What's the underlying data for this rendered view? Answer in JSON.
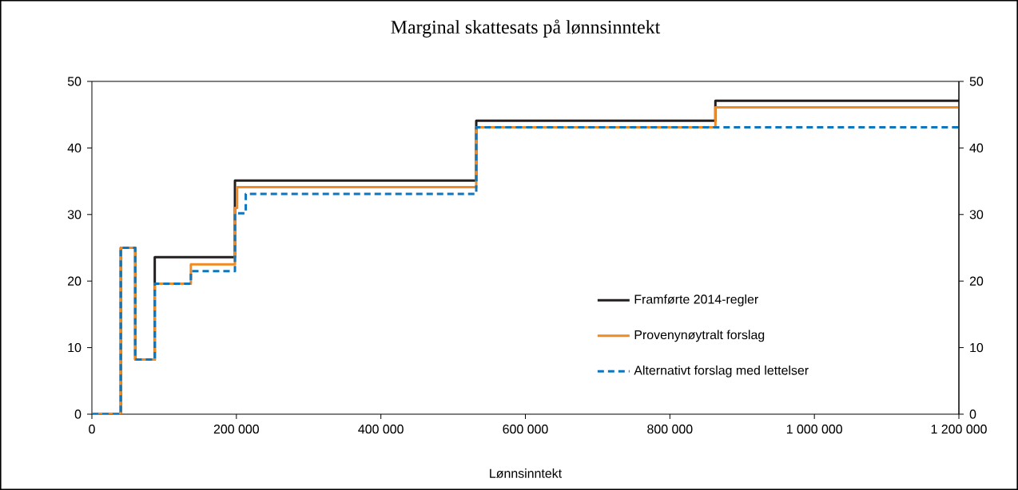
{
  "chart_data": {
    "type": "step",
    "title": "Marginal skattesats på lønnsinntekt",
    "xlabel": "Lønnsinntekt",
    "xlim": [
      0,
      1200000
    ],
    "xticks": [
      0,
      {
        "value": 200000,
        "label": "200 000"
      },
      {
        "value": 400000,
        "label": "400 000"
      },
      {
        "value": 600000,
        "label": "600 000"
      },
      {
        "value": 800000,
        "label": "800 000"
      },
      {
        "value": 1000000,
        "label": "1 000 000"
      },
      {
        "value": 1200000,
        "label": "1 200 000"
      }
    ],
    "ylim": [
      0,
      50
    ],
    "yticks": [
      0,
      10,
      20,
      30,
      40,
      50
    ],
    "y2lim": [
      0,
      50
    ],
    "y2ticks": [
      0,
      10,
      20,
      30,
      40,
      50
    ],
    "legend": "bottom right",
    "series": [
      {
        "name": "Framførte 2014-regler",
        "color": "#231f20",
        "line_style": "solid",
        "x": [
          0,
          40000,
          60000,
          87000,
          198000,
          532000,
          863000,
          1200000
        ],
        "values": [
          0,
          25,
          8.2,
          23.6,
          35.1,
          44.1,
          47.1,
          47.1
        ]
      },
      {
        "name": "Provenynøytralt forslag",
        "color": "#f08a24",
        "line_style": "solid",
        "x": [
          0,
          40000,
          60000,
          87000,
          137000,
          198000,
          201000,
          532000,
          863000,
          1200000
        ],
        "values": [
          0,
          25,
          8.2,
          19.6,
          22.5,
          31,
          34.1,
          43.1,
          46.1,
          46.1
        ]
      },
      {
        "name": "Alternativt forslag med lettelser",
        "color": "#0f75bc",
        "line_style": "dashed",
        "x": [
          0,
          40000,
          60000,
          87000,
          137000,
          198000,
          213000,
          532000,
          1200000
        ],
        "values": [
          0,
          25,
          8.2,
          19.6,
          21.5,
          30.2,
          33.1,
          43.1,
          43.1
        ]
      }
    ]
  }
}
